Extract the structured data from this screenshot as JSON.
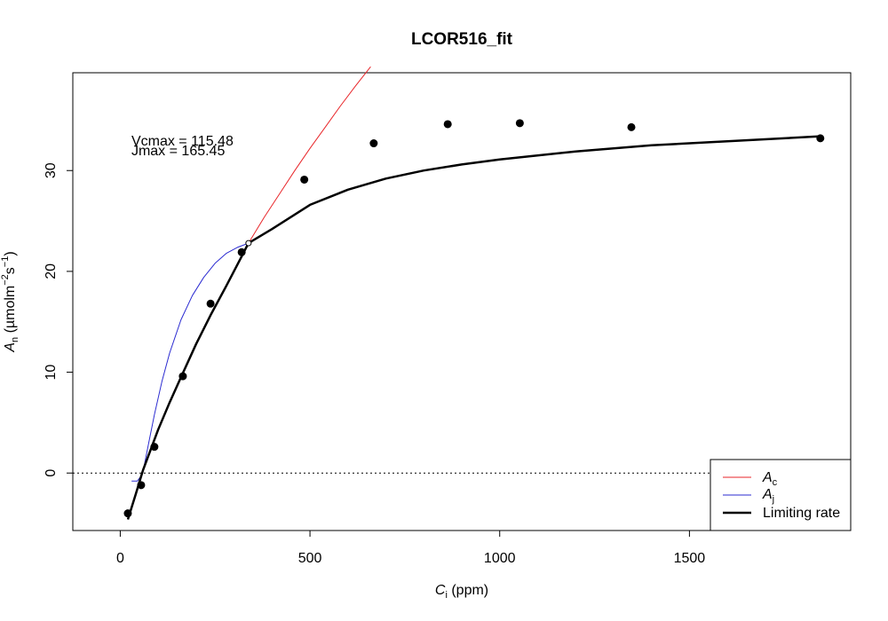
{
  "chart_data": {
    "type": "scatter",
    "title": "LCOR516_fit",
    "xlabel": {
      "symbol": "C",
      "sub": "i",
      "unit": " (ppm)"
    },
    "ylabel": {
      "symbol": "A",
      "sub": "n",
      "unit_pre": " (µmolm",
      "unit_exp1": "−2",
      "unit_mid": "s",
      "unit_exp2": "−1",
      "unit_post": ")"
    },
    "xlim": [
      -125,
      1925
    ],
    "ylim": [
      -5.7,
      39.7
    ],
    "xticks": [
      0,
      500,
      1000,
      1500
    ],
    "yticks": [
      0,
      10,
      20,
      30
    ],
    "grid": false,
    "zero_line": {
      "y": 0,
      "style": "dotted"
    },
    "annotations": [
      "Vcmax = 115.48",
      "Jmax = 165.45"
    ],
    "annotation_position": {
      "x": 20,
      "y": 33
    },
    "observed_points": {
      "x": [
        20,
        55,
        90,
        165,
        238,
        320,
        485,
        668,
        863,
        1053,
        1347,
        1845
      ],
      "y": [
        -4,
        -1.2,
        2.6,
        9.6,
        16.8,
        21.9,
        29.1,
        32.7,
        34.6,
        34.7,
        34.3,
        33.2
      ]
    },
    "transition_point": {
      "x": 338,
      "y": 22.8
    },
    "legend": {
      "placement": "bottom-right",
      "entries": [
        {
          "symbol": "A",
          "sub": "c",
          "color": "#e8262a"
        },
        {
          "symbol": "A",
          "sub": "j",
          "color": "#2b2bd1"
        },
        {
          "label": "Limiting rate",
          "color": "#000000"
        }
      ]
    },
    "series": [
      {
        "key": "Ac",
        "color": "#e8262a",
        "x": [
          338,
          380,
          420,
          460,
          500,
          540,
          580,
          620,
          660
        ],
        "y": [
          22.8,
          25.4,
          27.7,
          30.0,
          32.2,
          34.3,
          36.4,
          38.4,
          40.3
        ]
      },
      {
        "key": "Aj",
        "color": "#2b2bd1",
        "x": [
          30,
          45,
          55,
          62,
          75,
          90,
          110,
          130,
          160,
          190,
          220,
          250,
          280,
          310,
          338
        ],
        "y": [
          -0.8,
          -0.8,
          -0.3,
          0.5,
          3.0,
          5.8,
          9.1,
          11.9,
          15.2,
          17.6,
          19.4,
          20.8,
          21.8,
          22.4,
          22.8
        ]
      },
      {
        "key": "limiting",
        "color": "#000000",
        "x": [
          20,
          40,
          60,
          80,
          100,
          130,
          160,
          200,
          240,
          280,
          320,
          338,
          400,
          500,
          600,
          700,
          800,
          900,
          1000,
          1200,
          1400,
          1600,
          1845
        ],
        "y": [
          -4.6,
          -2.2,
          0.3,
          2.3,
          4.3,
          7.0,
          9.5,
          12.8,
          15.8,
          18.6,
          21.5,
          22.8,
          24.2,
          26.6,
          28.1,
          29.2,
          30.0,
          30.6,
          31.1,
          31.9,
          32.5,
          32.9,
          33.4
        ]
      }
    ]
  }
}
